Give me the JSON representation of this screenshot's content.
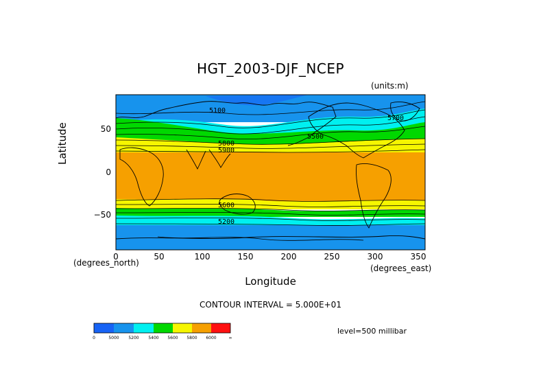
{
  "title": "HGT_2003-DJF_NCEP",
  "units": "(units:m)",
  "axes": {
    "xlabel": "Longitude",
    "ylabel": "Latitude",
    "x_unit_left": "(degrees_north)",
    "x_unit_right": "(degrees_east)",
    "x_ticks": [
      "0",
      "50",
      "100",
      "150",
      "200",
      "250",
      "300",
      "350"
    ],
    "y_ticks": [
      "50",
      "0",
      "−50"
    ]
  },
  "contour_note": "CONTOUR INTERVAL = 5.000E+01",
  "level_note": "level=500 millibar",
  "contour_labels": [
    "5100",
    "5500",
    "5800",
    "5900",
    "5600",
    "5200",
    "5700"
  ],
  "colorbar": {
    "labels": [
      "0",
      "5000",
      "5200",
      "5400",
      "5600",
      "5800",
      "6000",
      "∞"
    ],
    "colors": [
      "#1763f5",
      "#1793ed",
      "#00f0f0",
      "#00d800",
      "#f6f600",
      "#f6a000",
      "#ff1010"
    ]
  },
  "chart_data": {
    "type": "heatmap",
    "title": "HGT_2003-DJF_NCEP",
    "xlabel": "Longitude",
    "ylabel": "Latitude",
    "xlim": [
      0,
      358
    ],
    "ylim": [
      -90,
      90
    ],
    "level": "500 millibar",
    "units": "m",
    "contour_interval": 50,
    "bands": [
      {
        "lat_from": 90,
        "lat_to": 56,
        "value_range": "5000-5200"
      },
      {
        "lat_from": 56,
        "lat_to": 50,
        "value_range": "5200-5400"
      },
      {
        "lat_from": 50,
        "lat_to": 38,
        "value_range": "5400-5600"
      },
      {
        "lat_from": 38,
        "lat_to": 26,
        "value_range": "5600-5800"
      },
      {
        "lat_from": 26,
        "lat_to": -30,
        "value_range": "5800-6000"
      },
      {
        "lat_from": -30,
        "lat_to": -40,
        "value_range": "5600-5800"
      },
      {
        "lat_from": -40,
        "lat_to": -50,
        "value_range": "5400-5600"
      },
      {
        "lat_from": -50,
        "lat_to": -60,
        "value_range": "5200-5400"
      },
      {
        "lat_from": -60,
        "lat_to": -90,
        "value_range": "5000-5200"
      }
    ]
  }
}
